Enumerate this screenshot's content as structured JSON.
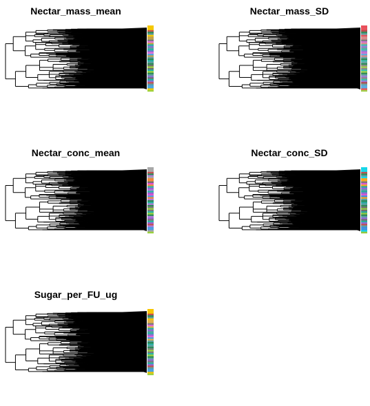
{
  "figure": {
    "panels": [
      {
        "id": "nectar_mass_mean",
        "title": "Nectar_mass_mean",
        "bar_palette": [
          "#f5c800",
          "#c2a24a",
          "#6f6f6f",
          "#8a6fd2",
          "#e86fd8",
          "#4aa3e0",
          "#22b3a8",
          "#9fd23a",
          "#c85050",
          "#7a7a7a",
          "#2e8b57",
          "#5f9ea0"
        ]
      },
      {
        "id": "nectar_mass_sd",
        "title": "Nectar_mass_SD",
        "bar_palette": [
          "#e8505b",
          "#d98a8a",
          "#8a8a8a",
          "#9b7ad6",
          "#d26fd0",
          "#5aa8df",
          "#3bbdaf",
          "#a2cf4a",
          "#b04a4a",
          "#7a7a7a",
          "#2e8b57",
          "#6aa2a6"
        ]
      },
      {
        "id": "nectar_conc_mean",
        "title": "Nectar_conc_mean",
        "bar_palette": [
          "#a7a7a7",
          "#f08a3a",
          "#7a7a7a",
          "#9a63d1",
          "#e24fd3",
          "#4f9be0",
          "#29b6a6",
          "#9ad13c",
          "#c64f4f",
          "#6f6f6f",
          "#2e8b57",
          "#b07ad8"
        ]
      },
      {
        "id": "nectar_conc_sd",
        "title": "Nectar_conc_SD",
        "bar_palette": [
          "#16d6e8",
          "#f5a623",
          "#6f6f6f",
          "#9169d4",
          "#db5ad1",
          "#3d8fe0",
          "#26a99d",
          "#92c83e",
          "#c04d4d",
          "#777777",
          "#2e8b57",
          "#5aa0a8"
        ]
      },
      {
        "id": "sugar_per_fu_ug",
        "title": "Sugar_per_FU_ug",
        "bar_palette": [
          "#f7c500",
          "#e0b04a",
          "#7c7c7c",
          "#8e6ad4",
          "#df66d5",
          "#4aa1e0",
          "#2bb3a6",
          "#9bd23c",
          "#c94f4f",
          "#7a7a7a",
          "#2e8b57",
          "#5f9ea0"
        ]
      }
    ]
  }
}
